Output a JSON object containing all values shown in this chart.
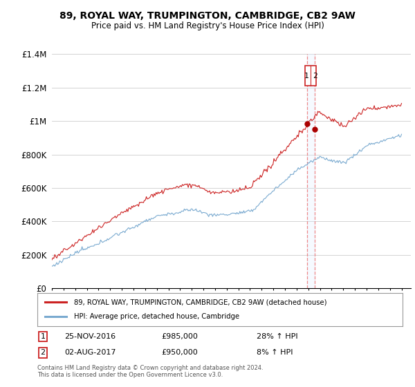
{
  "title": "89, ROYAL WAY, TRUMPINGTON, CAMBRIDGE, CB2 9AW",
  "subtitle": "Price paid vs. HM Land Registry's House Price Index (HPI)",
  "legend_line1": "89, ROYAL WAY, TRUMPINGTON, CAMBRIDGE, CB2 9AW (detached house)",
  "legend_line2": "HPI: Average price, detached house, Cambridge",
  "transaction1_date": "25-NOV-2016",
  "transaction1_price": "£985,000",
  "transaction1_hpi": "28% ↑ HPI",
  "transaction2_date": "02-AUG-2017",
  "transaction2_price": "£950,000",
  "transaction2_hpi": "8% ↑ HPI",
  "footer": "Contains HM Land Registry data © Crown copyright and database right 2024.\nThis data is licensed under the Open Government Licence v3.0.",
  "hpi_color": "#7aaad0",
  "price_color": "#cc2222",
  "marker_color": "#aa0000",
  "vline_color": "#ee8888",
  "shade_color": "#ddeeff",
  "background_color": "#ffffff",
  "grid_color": "#cccccc",
  "ylim_min": 0,
  "ylim_max": 1400000,
  "yticks": [
    0,
    200000,
    400000,
    600000,
    800000,
    1000000,
    1200000,
    1400000
  ],
  "ytick_labels": [
    "£0",
    "£200K",
    "£400K",
    "£600K",
    "£800K",
    "£1M",
    "£1.2M",
    "£1.4M"
  ],
  "year_start": 1995,
  "year_end": 2025
}
